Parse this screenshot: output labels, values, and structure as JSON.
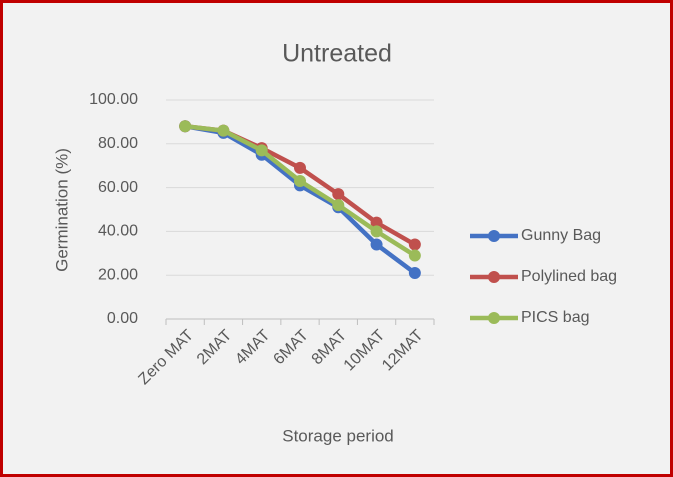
{
  "chart_data": {
    "type": "line",
    "title": "Untreated",
    "x_label": "Storage period",
    "y_label": "Germination (%)",
    "categories": [
      "Zero MAT",
      "2MAT",
      "4MAT",
      "6MAT",
      "8MAT",
      "10MAT",
      "12MAT"
    ],
    "series": [
      {
        "name": "Gunny Bag",
        "color": "#4472c4",
        "values": [
          88,
          85,
          75,
          61,
          51,
          34,
          21
        ]
      },
      {
        "name": "Polylined bag",
        "color": "#c0504d",
        "values": [
          88,
          86,
          78,
          69,
          57,
          44,
          34
        ]
      },
      {
        "name": "PICS bag",
        "color": "#9bbb59",
        "values": [
          88,
          86,
          77,
          63,
          52,
          40,
          29
        ]
      }
    ],
    "ylim": [
      0,
      100
    ],
    "yticks": [
      {
        "value": 0,
        "label": "0.00"
      },
      {
        "value": 20,
        "label": "20.00"
      },
      {
        "value": 40,
        "label": "40.00"
      },
      {
        "value": 60,
        "label": "60.00"
      },
      {
        "value": 80,
        "label": "80.00"
      },
      {
        "value": 100,
        "label": "100.00"
      }
    ],
    "grid": true,
    "legend": "right"
  }
}
